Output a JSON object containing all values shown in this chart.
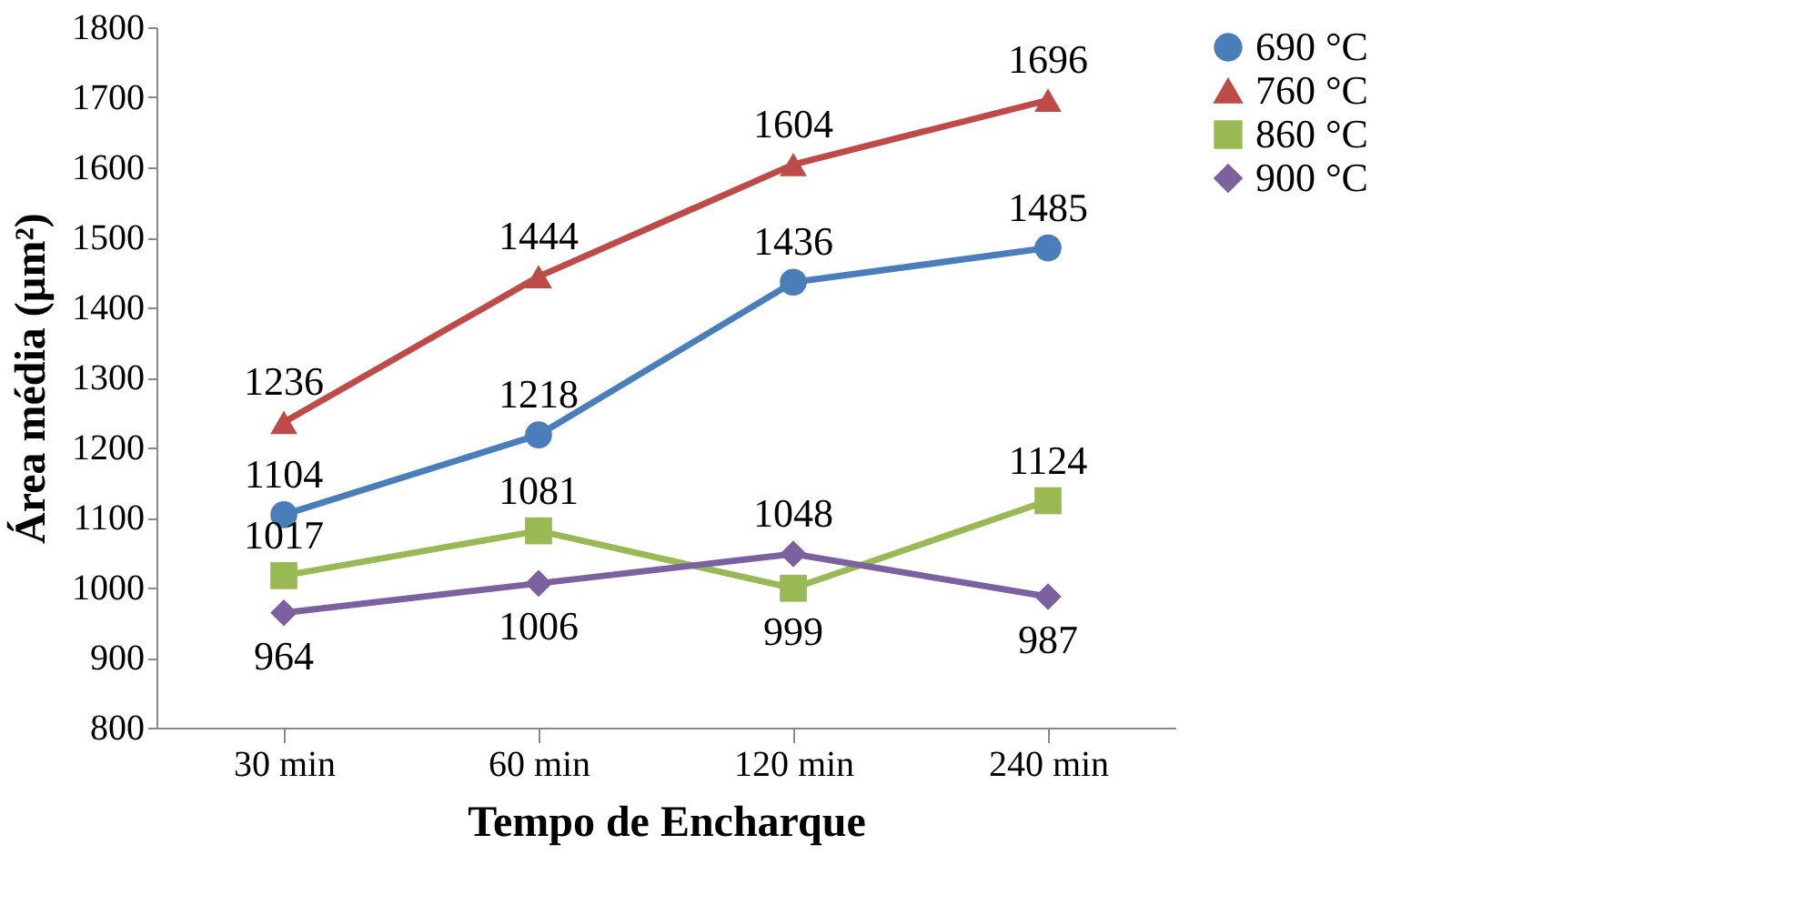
{
  "chart_data": {
    "type": "line",
    "xlabel": "Tempo de Encharque",
    "ylabel": "Área média (µm²)",
    "categories": [
      "30 min",
      "60 min",
      "120 min",
      "240 min"
    ],
    "series": [
      {
        "name": "690  °C",
        "color": "#4a7ebb",
        "marker": "circle",
        "values": [
          1104,
          1218,
          1436,
          1485
        ]
      },
      {
        "name": "760 °C",
        "color": "#be4b48",
        "marker": "triangle",
        "values": [
          1236,
          1444,
          1604,
          1696
        ]
      },
      {
        "name": "860 °C",
        "color": "#98b954",
        "marker": "square",
        "values": [
          1017,
          1081,
          999,
          1124
        ]
      },
      {
        "name": "900 °C",
        "color": "#7d60a0",
        "marker": "diamond",
        "values": [
          964,
          1006,
          1048,
          987
        ]
      }
    ],
    "ylim": [
      800,
      1800
    ],
    "yticks": [
      800,
      900,
      1000,
      1100,
      1200,
      1300,
      1400,
      1500,
      1600,
      1700,
      1800
    ],
    "grid": false,
    "legend": "right",
    "data_labels": true,
    "line_style": "solid"
  }
}
